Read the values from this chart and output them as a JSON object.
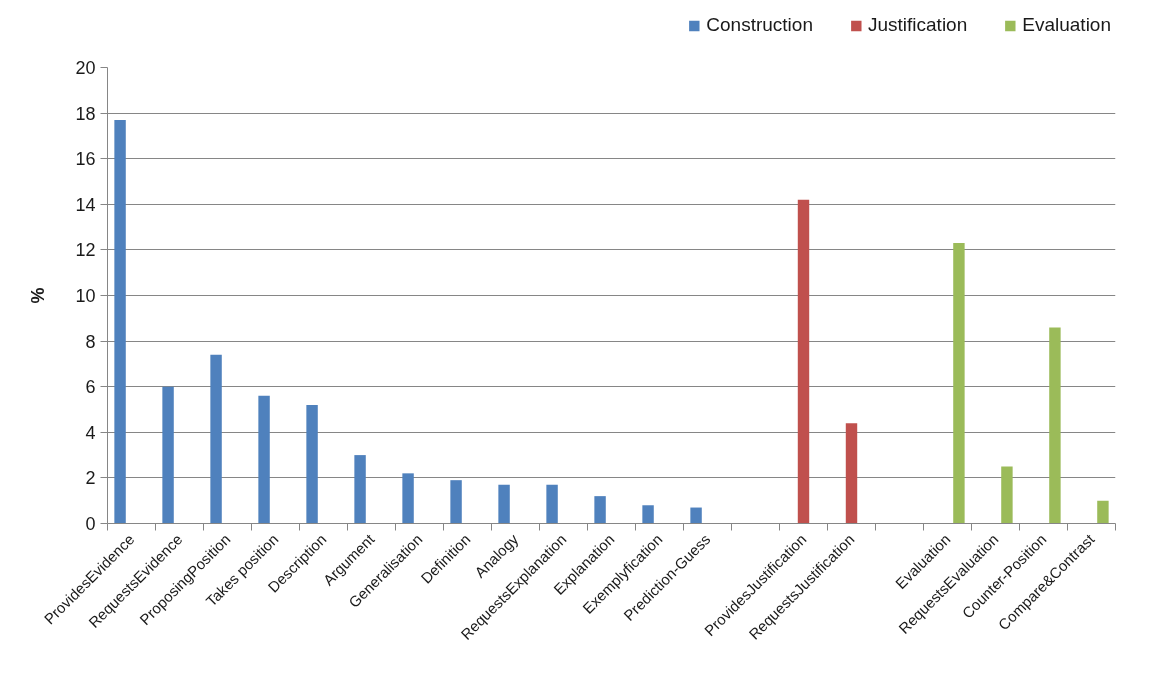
{
  "chart_data": {
    "type": "bar",
    "categories": [
      "ProvidesEvidence",
      "RequestsEvidence",
      "ProposingPosition",
      "Takes position",
      "Description",
      "Argument",
      "Generalisation",
      "Definition",
      "Analogy",
      "RequestsExplanation",
      "Explanation",
      "Exemplyfication",
      "Prediction-Guess",
      null,
      "ProvidesJustification",
      "RequestsJustification",
      null,
      "Evaluation",
      "RequestsEvaluation",
      "Counter-Position",
      "Compare&Contrast"
    ],
    "ylabel": "%",
    "ylim": [
      0,
      20
    ],
    "yticks": [
      0,
      2,
      4,
      6,
      8,
      10,
      12,
      14,
      16,
      18,
      20
    ],
    "grid": "y",
    "legend": "top right",
    "series": [
      {
        "name": "Construction",
        "color": "#4f81bd",
        "values": [
          17.7,
          6.0,
          7.4,
          5.6,
          5.2,
          3.0,
          2.2,
          1.9,
          1.7,
          1.7,
          1.2,
          0.8,
          0.7,
          null,
          null,
          null,
          null,
          null,
          null,
          null,
          null
        ]
      },
      {
        "name": "Justification",
        "color": "#c0504d",
        "values": [
          null,
          null,
          null,
          null,
          null,
          null,
          null,
          null,
          null,
          null,
          null,
          null,
          null,
          null,
          14.2,
          4.4,
          null,
          null,
          null,
          null,
          null
        ]
      },
      {
        "name": "Evaluation",
        "color": "#9bbb59",
        "values": [
          null,
          null,
          null,
          null,
          null,
          null,
          null,
          null,
          null,
          null,
          null,
          null,
          null,
          null,
          null,
          null,
          null,
          12.3,
          2.5,
          8.6,
          1.0
        ]
      }
    ]
  }
}
